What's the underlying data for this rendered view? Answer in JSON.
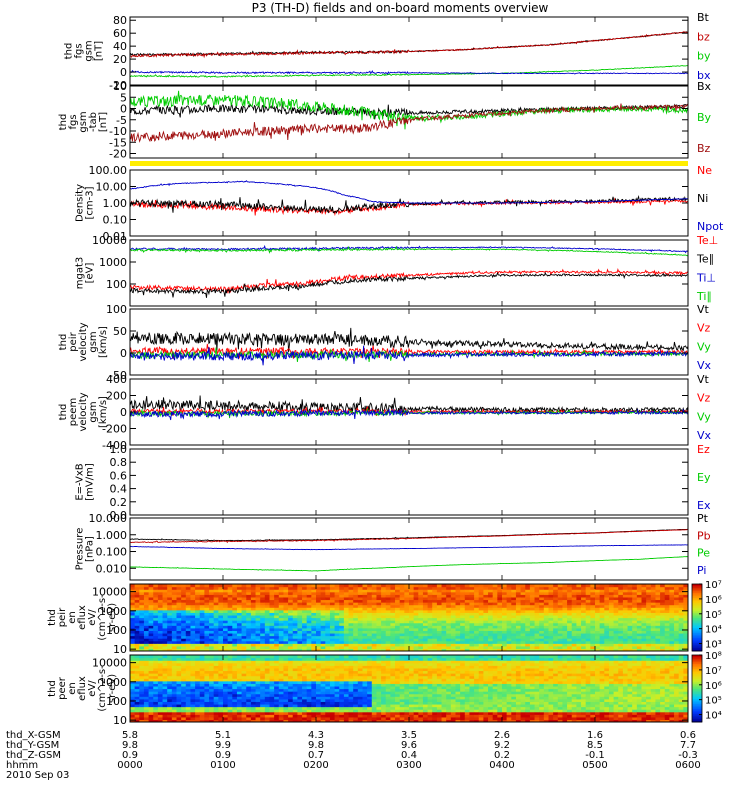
{
  "title": "P3 (TH-D) fields and on-board moments overview",
  "chart_data": {
    "type": "line",
    "title": "P3 (TH-D) fields and on-board moments overview",
    "x_axis": {
      "rows": [
        {
          "label": "thd_X-GSM",
          "values": [
            "5.8",
            "5.1",
            "4.3",
            "3.5",
            "2.6",
            "1.6",
            "0.6"
          ]
        },
        {
          "label": "thd_Y-GSM",
          "values": [
            "9.8",
            "9.9",
            "9.8",
            "9.6",
            "9.2",
            "8.5",
            "7.7"
          ]
        },
        {
          "label": "thd_Z-GSM",
          "values": [
            "0.9",
            "0.9",
            "0.7",
            "0.4",
            "0.2",
            "-0.1",
            "-0.3"
          ]
        },
        {
          "label": "hhmm",
          "values": [
            "0000",
            "0100",
            "0200",
            "0300",
            "0400",
            "0500",
            "0600"
          ]
        }
      ],
      "date": "2010 Sep 03",
      "range_hours": [
        0,
        6
      ]
    },
    "panels": [
      {
        "id": "fgs",
        "ylabel": [
          "thd",
          "fgs",
          "gsm",
          "[nT]"
        ],
        "scale": "linear",
        "ylim": [
          -20,
          85
        ],
        "yticks": [
          "80",
          "60",
          "40",
          "20",
          "0",
          "-20"
        ],
        "series": [
          {
            "name": "Bt",
            "color": "#000000",
            "noise": 1.5,
            "x": [
              0,
              0.8,
              1.8,
              2.8,
              3.5,
              4.5,
              5.5,
              6
            ],
            "y": [
              27,
              28,
              30,
              31,
              34,
              42,
              55,
              62
            ]
          },
          {
            "name": "bz",
            "color": "#c00000",
            "noise": 2,
            "x": [
              0,
              0.8,
              1.8,
              2.8,
              3.5,
              4.5,
              5.5,
              6
            ],
            "y": [
              25,
              27,
              29,
              31,
              34,
              42,
              55,
              62
            ]
          },
          {
            "name": "by",
            "color": "#00cc00",
            "noise": 1,
            "x": [
              0,
              1,
              2,
              3,
              4,
              5,
              6
            ],
            "y": [
              -6,
              -7,
              -5,
              -4,
              -2,
              3,
              10
            ]
          },
          {
            "name": "bx",
            "color": "#0000cc",
            "noise": 1.2,
            "x": [
              0,
              1,
              2,
              3,
              4,
              5,
              6
            ],
            "y": [
              0,
              -1,
              -1,
              -1,
              -2,
              -2,
              -2
            ]
          }
        ]
      },
      {
        "id": "fgs_detrend",
        "ylabel": [
          "thd",
          "fgs",
          "gsm",
          "-tab",
          "[nT]"
        ],
        "scale": "linear",
        "ylim": [
          -22,
          10
        ],
        "yticks": [
          "10",
          "5",
          "0",
          "-5",
          "-10",
          "-15",
          "-20"
        ],
        "series": [
          {
            "name": "Bx",
            "color": "#000000",
            "noise": 1.8,
            "x": [
              0,
              1,
              2,
              3,
              4,
              5,
              6
            ],
            "y": [
              -1,
              0,
              -1,
              -2,
              -1,
              0,
              1
            ]
          },
          {
            "name": "By",
            "color": "#00cc00",
            "noise": 2.5,
            "x": [
              0,
              1,
              2,
              2.9,
              3.5,
              4.5,
              5.5,
              6
            ],
            "y": [
              3,
              4,
              1,
              -4,
              -4,
              -1,
              0,
              -1
            ]
          },
          {
            "name": "Bz",
            "color": "#a01010",
            "noise": 2,
            "x": [
              0,
              1,
              2,
              2.5,
              3,
              4,
              5,
              6
            ],
            "y": [
              -13,
              -11,
              -9,
              -9,
              -5,
              -2,
              0,
              1
            ]
          }
        ],
        "flag_color": "#ffee00"
      },
      {
        "id": "density",
        "ylabel": [
          "Density",
          "[cm-3]"
        ],
        "scale": "log",
        "ylim": [
          0.01,
          100
        ],
        "yticks": [
          "100.00",
          "10.00",
          "1.00",
          "0.10",
          "0.01"
        ],
        "series": [
          {
            "name": "Ne",
            "color": "#ff0000",
            "noise": 0.35,
            "x": [
              0,
              0.8,
              1.6,
              2.2,
              2.6,
              3,
              4,
              5,
              6
            ],
            "y": [
              0.8,
              0.6,
              0.4,
              0.3,
              0.5,
              0.8,
              1.0,
              1.1,
              1.3
            ]
          },
          {
            "name": "Ni",
            "color": "#000000",
            "noise": 0.4,
            "x": [
              0,
              0.8,
              1.6,
              2.2,
              2.6,
              3,
              4,
              5,
              6
            ],
            "y": [
              1.0,
              0.9,
              0.5,
              0.4,
              0.6,
              0.9,
              1.1,
              1.3,
              1.8
            ]
          },
          {
            "name": "Npot",
            "color": "#0000cc",
            "noise": 0.05,
            "x": [
              0,
              0.5,
              1.2,
              1.9,
              2.3,
              2.6,
              3,
              4,
              5,
              6
            ],
            "y": [
              7,
              15,
              20,
              10,
              3,
              1.2,
              1.0,
              1.0,
              1.2,
              1.8
            ]
          }
        ]
      },
      {
        "id": "temperature",
        "ylabel": [
          "mgat3",
          "[eV]"
        ],
        "scale": "log",
        "ylim": [
          10,
          10000
        ],
        "yticks": [
          "10000",
          "1000",
          "100"
        ],
        "series": [
          {
            "name": "Te⊥",
            "color": "#ff0000",
            "noise": 0.2,
            "x": [
              0,
              1,
              1.9,
              2.4,
              3,
              4,
              5,
              6
            ],
            "y": [
              70,
              60,
              110,
              200,
              250,
              350,
              350,
              320
            ]
          },
          {
            "name": "Te∥",
            "color": "#000000",
            "noise": 0.2,
            "x": [
              0,
              1,
              1.9,
              2.4,
              3,
              4,
              5,
              6
            ],
            "y": [
              50,
              45,
              80,
              150,
              180,
              250,
              260,
              240
            ]
          },
          {
            "name": "Ti⊥",
            "color": "#0000cc",
            "noise": 0.08,
            "x": [
              0,
              1,
              2,
              3,
              4,
              5,
              6
            ],
            "y": [
              4000,
              3800,
              4200,
              4500,
              4700,
              4000,
              3000
            ]
          },
          {
            "name": "Ti∥",
            "color": "#00cc00",
            "noise": 0.08,
            "x": [
              0,
              1,
              2,
              3,
              4,
              5,
              6
            ],
            "y": [
              3500,
              3300,
              3600,
              3800,
              3800,
              3000,
              2000
            ]
          }
        ]
      },
      {
        "id": "peir_velocity",
        "ylabel": [
          "thd",
          "peir",
          "velocity",
          "gsm",
          "[km/s]"
        ],
        "scale": "linear",
        "ylim": [
          -50,
          100
        ],
        "yticks": [
          "100",
          "50",
          "0",
          "-50"
        ],
        "series": [
          {
            "name": "Vt",
            "color": "#000000",
            "noise": 14,
            "x": [
              0,
              1,
              2,
              3,
              4,
              5,
              6
            ],
            "y": [
              35,
              32,
              30,
              25,
              20,
              15,
              12
            ]
          },
          {
            "name": "Vz",
            "color": "#ff0000",
            "noise": 8,
            "x": [
              0,
              3,
              6
            ],
            "y": [
              5,
              3,
              2
            ]
          },
          {
            "name": "Vy",
            "color": "#00cc00",
            "noise": 8,
            "x": [
              0,
              3,
              6
            ],
            "y": [
              -5,
              -3,
              -2
            ]
          },
          {
            "name": "Vx",
            "color": "#0000cc",
            "noise": 10,
            "x": [
              0,
              3,
              6
            ],
            "y": [
              -8,
              -4,
              -2
            ]
          }
        ]
      },
      {
        "id": "peem_velocity",
        "ylabel": [
          "thd",
          "peem",
          "velocity",
          "gsm",
          "[km/s]"
        ],
        "scale": "linear",
        "ylim": [
          -400,
          400
        ],
        "yticks": [
          "400",
          "200",
          "0",
          "-200",
          "-400"
        ],
        "series": [
          {
            "name": "Vt",
            "color": "#000000",
            "noise": 60,
            "x": [
              0,
              1,
              2,
              3,
              4,
              5,
              6
            ],
            "y": [
              90,
              80,
              60,
              40,
              30,
              25,
              25
            ]
          },
          {
            "name": "Vz",
            "color": "#ff0000",
            "noise": 25,
            "x": [
              0,
              3,
              6
            ],
            "y": [
              10,
              5,
              5
            ]
          },
          {
            "name": "Vy",
            "color": "#00cc00",
            "noise": 30,
            "x": [
              0,
              3,
              6
            ],
            "y": [
              -20,
              -10,
              -5
            ]
          },
          {
            "name": "Vx",
            "color": "#0000cc",
            "noise": 35,
            "x": [
              0,
              3,
              6
            ],
            "y": [
              -25,
              -10,
              -8
            ]
          }
        ]
      },
      {
        "id": "efield",
        "ylabel": [
          "E=-VxB",
          "[mV/m]"
        ],
        "scale": "linear",
        "ylim": [
          0,
          1
        ],
        "yticks": [
          "1.0",
          "0.8",
          "0.6",
          "0.4",
          "0.2",
          "0.0"
        ],
        "series": [
          {
            "name": "Ez",
            "color": "#ff0000",
            "x": [],
            "y": []
          },
          {
            "name": "Ey",
            "color": "#00cc00",
            "x": [],
            "y": []
          },
          {
            "name": "Ex",
            "color": "#0000cc",
            "x": [],
            "y": []
          }
        ]
      },
      {
        "id": "pressure",
        "ylabel": [
          "Pressure",
          "[nPa]"
        ],
        "scale": "log",
        "ylim": [
          0.002,
          10
        ],
        "yticks": [
          "10.000",
          "1.000",
          "0.100",
          "0.010"
        ],
        "series": [
          {
            "name": "Pt",
            "color": "#000000",
            "noise": 0.03,
            "x": [
              0,
              1,
              2,
              3,
              4,
              5,
              6
            ],
            "y": [
              0.55,
              0.45,
              0.5,
              0.65,
              0.9,
              1.3,
              2.1
            ]
          },
          {
            "name": "Pb",
            "color": "#c00000",
            "noise": 0.04,
            "x": [
              0,
              1,
              2,
              3,
              4,
              5,
              6
            ],
            "y": [
              0.35,
              0.4,
              0.45,
              0.6,
              0.85,
              1.25,
              2.0
            ]
          },
          {
            "name": "Pe",
            "color": "#00cc00",
            "noise": 0.02,
            "x": [
              0,
              1,
              2,
              2.8,
              3.5,
              4.5,
              5.5,
              6
            ],
            "y": [
              0.012,
              0.009,
              0.007,
              0.011,
              0.016,
              0.022,
              0.035,
              0.05
            ]
          },
          {
            "name": "Pi",
            "color": "#0000cc",
            "noise": 0.02,
            "x": [
              0,
              1,
              2,
              3,
              4,
              5,
              6
            ],
            "y": [
              0.2,
              0.15,
              0.13,
              0.15,
              0.18,
              0.22,
              0.25
            ]
          }
        ]
      },
      {
        "id": "peir_spec",
        "type": "heatmap",
        "ylabel": [
          "thd",
          "peir",
          "en",
          "eflux",
          "eV/",
          "(cm^2-s-",
          "sr-eV)"
        ],
        "scale": "log",
        "ylim": [
          8,
          25000
        ],
        "yticks": [
          "10000",
          "1000",
          "100",
          "10"
        ],
        "colorbar": {
          "ticks": [
            "10^7",
            "10^6",
            "10^5",
            "10^4",
            "10^3"
          ],
          "range_log": [
            2.5,
            7
          ]
        }
      },
      {
        "id": "peer_spec",
        "type": "heatmap",
        "ylabel": [
          "thd",
          "peer",
          "en",
          "eflux",
          "eV/",
          "(cm^2-s-",
          "sr-eV)"
        ],
        "scale": "log",
        "ylim": [
          8,
          25000
        ],
        "yticks": [
          "10000",
          "1000",
          "100",
          "10"
        ],
        "colorbar": {
          "ticks": [
            "10^8",
            "10^7",
            "10^6",
            "10^5",
            "10^4"
          ],
          "range_log": [
            3.5,
            8
          ]
        }
      }
    ]
  }
}
